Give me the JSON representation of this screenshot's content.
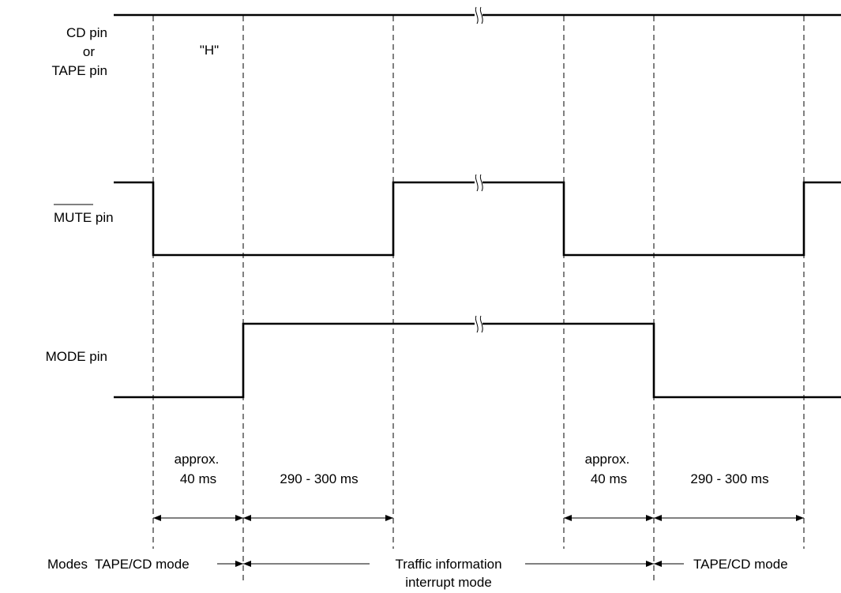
{
  "signals": [
    {
      "key": "cd_tape",
      "label_lines": [
        "CD pin",
        "or",
        "TAPE pin"
      ],
      "state_label": "\"H\""
    },
    {
      "key": "mute",
      "label_overbar": "MUTE",
      "label_suffix": " pin"
    },
    {
      "key": "mode",
      "label": "MODE pin"
    }
  ],
  "durations": [
    {
      "lines": [
        "approx.",
        "40 ms"
      ]
    },
    {
      "lines": [
        "290 - 300 ms"
      ]
    },
    {
      "lines": [
        "approx.",
        "40 ms"
      ]
    },
    {
      "lines": [
        "290 - 300 ms"
      ]
    }
  ],
  "modes": {
    "row_label": "Modes",
    "items": [
      {
        "lines": [
          "TAPE/CD mode"
        ]
      },
      {
        "lines": [
          "Traffic information",
          "interrupt mode"
        ]
      },
      {
        "lines": [
          "TAPE/CD mode"
        ]
      }
    ]
  }
}
